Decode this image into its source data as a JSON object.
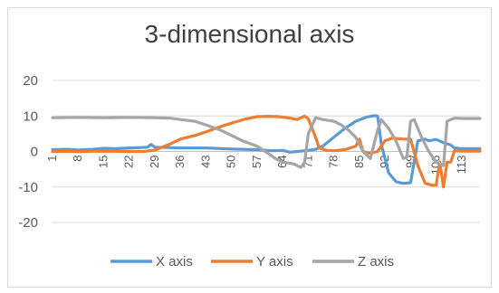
{
  "chart_data": {
    "type": "line",
    "title": "3-dimensional axis",
    "xlabel": "",
    "ylabel": "",
    "ylim": [
      -20,
      20
    ],
    "yticks": [
      "20",
      "10",
      "0",
      "-10",
      "-20"
    ],
    "x": [
      1,
      8,
      15,
      22,
      29,
      36,
      43,
      50,
      57,
      64,
      71,
      78,
      85,
      92,
      99,
      106,
      113
    ],
    "xtick_labels": [
      "1",
      "8",
      "15",
      "22",
      "29",
      "36",
      "43",
      "50",
      "57",
      "64",
      "71",
      "78",
      "85",
      "92",
      "99",
      "106",
      "113"
    ],
    "grid": true,
    "legend": "bottom",
    "series": [
      {
        "name": "X axis",
        "color": "#5b9bd5",
        "points": [
          [
            1,
            0.5
          ],
          [
            5,
            0.6
          ],
          [
            8,
            0.4
          ],
          [
            12,
            0.6
          ],
          [
            15,
            0.9
          ],
          [
            18,
            0.8
          ],
          [
            22,
            1.0
          ],
          [
            25,
            1.1
          ],
          [
            27,
            1.2
          ],
          [
            28,
            2.0
          ],
          [
            29,
            1.2
          ],
          [
            33,
            1.1
          ],
          [
            36,
            1.0
          ],
          [
            43,
            1.0
          ],
          [
            50,
            0.7
          ],
          [
            57,
            0.5
          ],
          [
            61,
            0.2
          ],
          [
            64,
            0.3
          ],
          [
            66,
            -0.2
          ],
          [
            68,
            0.0
          ],
          [
            71,
            0.3
          ],
          [
            73,
            0.6
          ],
          [
            75,
            1.5
          ],
          [
            78,
            4.0
          ],
          [
            81,
            6.5
          ],
          [
            84,
            8.5
          ],
          [
            87,
            9.7
          ],
          [
            89,
            10.1
          ],
          [
            90,
            10.0
          ],
          [
            91,
            2.0
          ],
          [
            93,
            -6.0
          ],
          [
            95,
            -8.5
          ],
          [
            97,
            -9.0
          ],
          [
            99,
            -8.8
          ],
          [
            100,
            -3.0
          ],
          [
            101,
            3.0
          ],
          [
            103,
            3.5
          ],
          [
            104,
            3.0
          ],
          [
            106,
            3.4
          ],
          [
            108,
            2.5
          ],
          [
            110,
            1.8
          ],
          [
            111,
            1.0
          ],
          [
            113,
            0.8
          ],
          [
            118,
            0.8
          ]
        ]
      },
      {
        "name": "Y axis",
        "color": "#ed7d31",
        "points": [
          [
            1,
            0.0
          ],
          [
            8,
            0.0
          ],
          [
            15,
            0.1
          ],
          [
            22,
            0.0
          ],
          [
            26,
            0.0
          ],
          [
            29,
            0.4
          ],
          [
            33,
            2.0
          ],
          [
            36,
            3.5
          ],
          [
            40,
            4.5
          ],
          [
            43,
            5.5
          ],
          [
            47,
            7.0
          ],
          [
            50,
            8.0
          ],
          [
            54,
            9.2
          ],
          [
            57,
            9.8
          ],
          [
            60,
            9.9
          ],
          [
            63,
            9.8
          ],
          [
            66,
            9.4
          ],
          [
            68,
            9.0
          ],
          [
            70,
            10.0
          ],
          [
            71,
            9.2
          ],
          [
            73,
            4.0
          ],
          [
            74,
            1.0
          ],
          [
            76,
            0.3
          ],
          [
            78,
            0.2
          ],
          [
            81,
            0.5
          ],
          [
            84,
            1.5
          ],
          [
            85,
            3.5
          ],
          [
            86,
            0.0
          ],
          [
            88,
            -0.5
          ],
          [
            90,
            0.0
          ],
          [
            92,
            3.0
          ],
          [
            94,
            3.8
          ],
          [
            97,
            3.5
          ],
          [
            99,
            3.5
          ],
          [
            101,
            -4.0
          ],
          [
            103,
            -9.0
          ],
          [
            105,
            -9.5
          ],
          [
            106,
            -9.5
          ],
          [
            107,
            -3.0
          ],
          [
            108,
            -10.0
          ],
          [
            109,
            -3.0
          ],
          [
            110,
            -3.0
          ],
          [
            111,
            0.2
          ],
          [
            113,
            0.1
          ],
          [
            118,
            0.1
          ]
        ]
      },
      {
        "name": "Z axis",
        "color": "#a5a5a5",
        "points": [
          [
            1,
            9.5
          ],
          [
            8,
            9.6
          ],
          [
            15,
            9.5
          ],
          [
            22,
            9.6
          ],
          [
            29,
            9.5
          ],
          [
            33,
            9.4
          ],
          [
            36,
            9.0
          ],
          [
            40,
            8.5
          ],
          [
            43,
            7.5
          ],
          [
            47,
            6.0
          ],
          [
            50,
            4.5
          ],
          [
            53,
            3.0
          ],
          [
            57,
            1.5
          ],
          [
            60,
            -0.5
          ],
          [
            62,
            -2.0
          ],
          [
            64,
            -3.0
          ],
          [
            67,
            -3.5
          ],
          [
            69,
            -4.5
          ],
          [
            70,
            -3.0
          ],
          [
            71,
            5.0
          ],
          [
            73,
            9.5
          ],
          [
            75,
            9.0
          ],
          [
            78,
            8.5
          ],
          [
            80,
            7.5
          ],
          [
            82,
            6.0
          ],
          [
            84,
            4.0
          ],
          [
            86,
            0.0
          ],
          [
            88,
            -2.0
          ],
          [
            90,
            6.0
          ],
          [
            91,
            9.0
          ],
          [
            93,
            6.5
          ],
          [
            95,
            3.0
          ],
          [
            97,
            -2.0
          ],
          [
            98,
            -1.5
          ],
          [
            99,
            8.5
          ],
          [
            100,
            9.0
          ],
          [
            102,
            4.0
          ],
          [
            104,
            0.0
          ],
          [
            106,
            -3.0
          ],
          [
            107,
            -3.5
          ],
          [
            108,
            -4.0
          ],
          [
            109,
            8.5
          ],
          [
            110,
            9.0
          ],
          [
            111,
            9.4
          ],
          [
            113,
            9.3
          ],
          [
            118,
            9.3
          ]
        ]
      }
    ]
  }
}
